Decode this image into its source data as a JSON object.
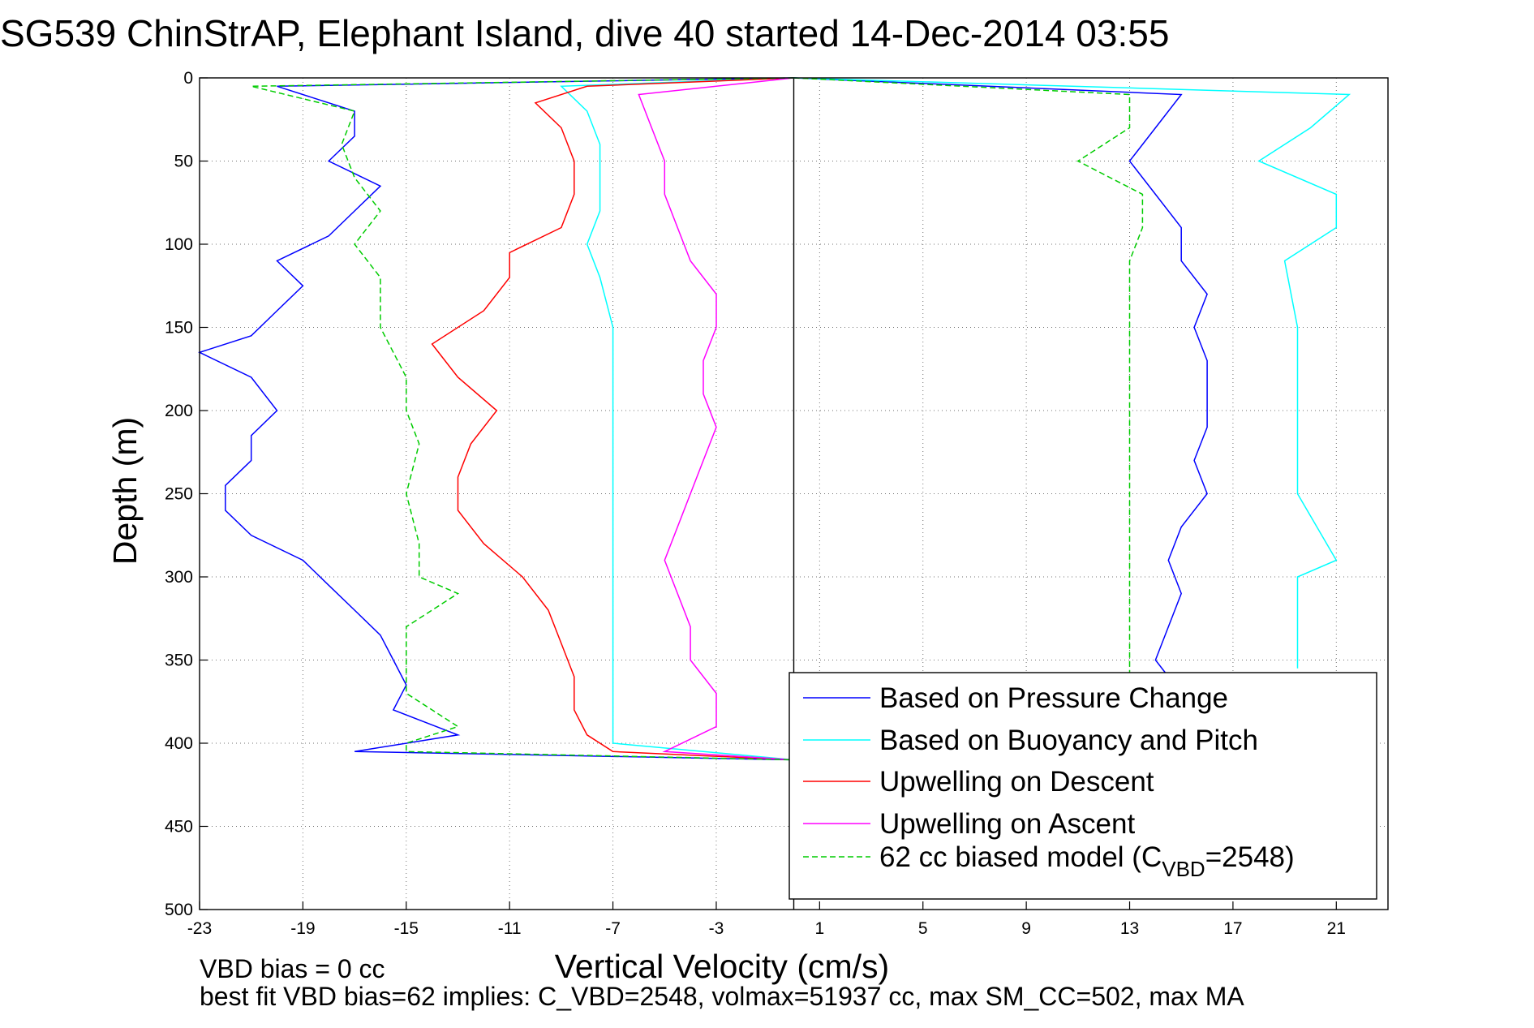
{
  "figure": {
    "title": "SG539 ChinStrAP, Elephant Island, dive 40 started 14-Dec-2014 03:55",
    "footnote_line1": "VBD bias = 0 cc",
    "footnote_line2": "best fit VBD bias=62 implies: C_VBD=2548, volmax=51937 cc, max SM_CC=502, max MA"
  },
  "chart_data": {
    "type": "line",
    "title": "SG539 ChinStrAP, Elephant Island, dive 40 started 14-Dec-2014 03:55",
    "xlabel": "Vertical Velocity (cm/s)",
    "ylabel": "Depth (m)",
    "xlim": [
      -23,
      23
    ],
    "ylim": [
      0,
      500
    ],
    "y_reversed": true,
    "grid": true,
    "x_ticks": [
      -23,
      -19,
      -15,
      -11,
      -7,
      -3,
      1,
      5,
      9,
      13,
      17,
      21
    ],
    "y_ticks": [
      0,
      50,
      100,
      150,
      200,
      250,
      300,
      350,
      400,
      450,
      500
    ],
    "vertical_reference_line_x": 0,
    "legend_position": "bottom-right",
    "legend_entries": [
      {
        "label": "Based on Pressure Change",
        "color": "#0000ff",
        "dash": "solid"
      },
      {
        "label": "Based on Buoyancy and Pitch",
        "color": "#00ffff",
        "dash": "solid"
      },
      {
        "label": "Upwelling on Descent",
        "color": "#ff0000",
        "dash": "solid"
      },
      {
        "label": "Upwelling on Ascent",
        "color": "#ff00ff",
        "dash": "solid"
      },
      {
        "label_prefix": "62 cc biased model (C",
        "label_subscript": "VBD",
        "label_suffix": "=2548)",
        "color": "#00cc00",
        "dash": "dashed"
      }
    ],
    "series": [
      {
        "color": "#0000ff",
        "depth": [
          0,
          5,
          20,
          35,
          50,
          65,
          80,
          95,
          110,
          125,
          140,
          155,
          165,
          180,
          200,
          215,
          230,
          245,
          260,
          275,
          290,
          305,
          320,
          335,
          350,
          365,
          380,
          395,
          405,
          410
        ],
        "values": [
          0,
          -20,
          -17,
          -17,
          -18,
          -16,
          -17,
          -18,
          -20,
          -19,
          -20,
          -21,
          -23,
          -21,
          -20,
          -21,
          -21,
          -22,
          -22,
          -21,
          -19,
          -18,
          -17,
          -16,
          -15.5,
          -15,
          -15.5,
          -13,
          -17,
          0
        ]
      },
      {
        "color": "#00ffff",
        "depth": [
          0,
          5,
          20,
          40,
          60,
          80,
          100,
          120,
          150,
          200,
          250,
          300,
          350,
          380,
          400,
          410
        ],
        "values": [
          0,
          -9,
          -8,
          -7.5,
          -7.5,
          -7.5,
          -8,
          -7.5,
          -7,
          -7,
          -7,
          -7,
          -7,
          -7,
          -7,
          0
        ]
      },
      {
        "color": "#ff0000",
        "depth": [
          0,
          5,
          15,
          30,
          50,
          70,
          90,
          105,
          120,
          140,
          160,
          180,
          200,
          220,
          240,
          260,
          280,
          300,
          320,
          340,
          360,
          380,
          395,
          405,
          410
        ],
        "values": [
          0,
          -8,
          -10,
          -9,
          -8.5,
          -8.5,
          -9,
          -11,
          -11,
          -12,
          -14,
          -13,
          -11.5,
          -12.5,
          -13,
          -13,
          -12,
          -10.5,
          -9.5,
          -9,
          -8.5,
          -8.5,
          -8,
          -7,
          0
        ]
      },
      {
        "color": "#ff00ff",
        "depth": [
          0,
          10,
          30,
          50,
          70,
          90,
          110,
          130,
          150,
          170,
          190,
          210,
          230,
          250,
          270,
          290,
          310,
          330,
          350,
          370,
          390,
          405,
          410
        ],
        "values": [
          0,
          -6,
          -5.5,
          -5,
          -5,
          -4.5,
          -4,
          -3,
          -3,
          -3.5,
          -3.5,
          -3,
          -3.5,
          -4,
          -4.5,
          -5,
          -4.5,
          -4,
          -4,
          -3,
          -3,
          -5,
          0
        ]
      },
      {
        "color": "#00cc00",
        "dashed": true,
        "depth": [
          0,
          5,
          20,
          40,
          60,
          80,
          100,
          120,
          150,
          180,
          200,
          220,
          250,
          280,
          300,
          310,
          330,
          350,
          370,
          390,
          400,
          405,
          410
        ],
        "values": [
          0,
          -21,
          -17,
          -17.5,
          -17,
          -16,
          -17,
          -16,
          -16,
          -15,
          -15,
          -14.5,
          -15,
          -14.5,
          -14.5,
          -13,
          -15,
          -15,
          -15,
          -13,
          -15,
          -15,
          0
        ]
      },
      {
        "color": "#0000ff",
        "depth": [
          0,
          10,
          30,
          50,
          70,
          90,
          110,
          130,
          150,
          170,
          190,
          210,
          230,
          250,
          270,
          290,
          310,
          330,
          350,
          360
        ],
        "values": [
          0,
          15,
          14,
          13,
          14,
          15,
          15,
          16,
          15.5,
          16,
          16,
          16,
          15.5,
          16,
          15,
          14.5,
          15,
          14.5,
          14,
          14.5
        ]
      },
      {
        "color": "#00ffff",
        "depth": [
          0,
          10,
          30,
          50,
          70,
          90,
          110,
          150,
          200,
          250,
          290,
          300,
          320,
          340,
          355
        ],
        "values": [
          0,
          21.5,
          20,
          18,
          21,
          21,
          19,
          19.5,
          19.5,
          19.5,
          21,
          19.5,
          19.5,
          19.5,
          19.5
        ]
      },
      {
        "color": "#00cc00",
        "dashed": true,
        "depth": [
          0,
          10,
          30,
          50,
          70,
          90,
          110,
          150,
          200,
          250,
          300,
          350,
          360
        ],
        "values": [
          0,
          13,
          13,
          11,
          13.5,
          13.5,
          13,
          13,
          13,
          13,
          13,
          13,
          13
        ]
      }
    ]
  }
}
